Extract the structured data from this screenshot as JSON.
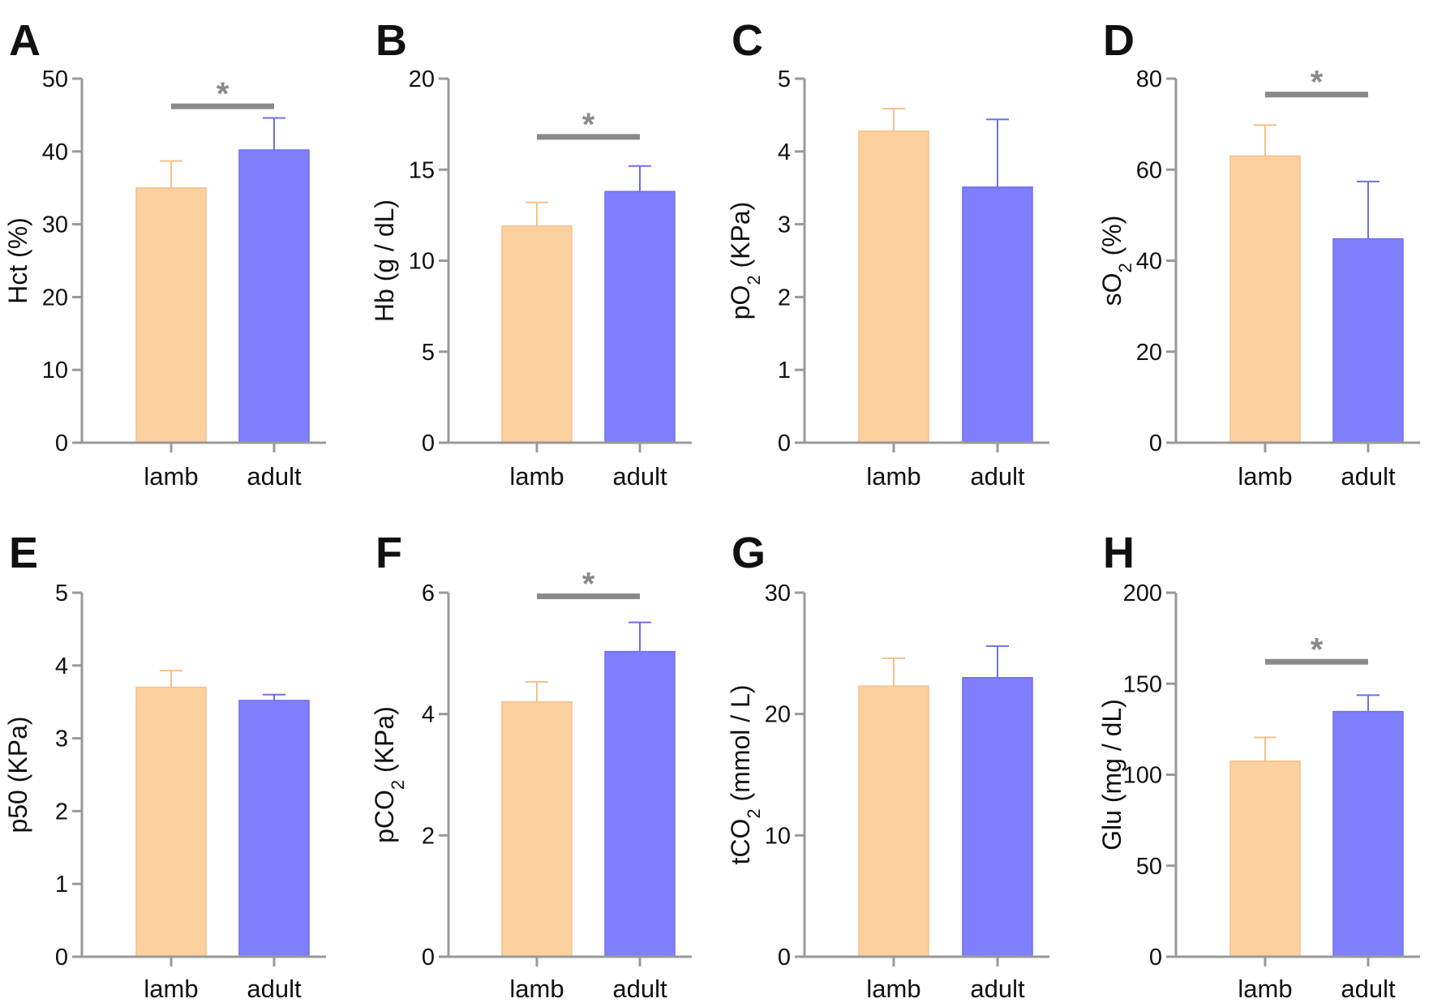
{
  "colors": {
    "lamb": "#FDD09F",
    "adult": "#7F7FFD",
    "lamb_edge": "#F4C08A",
    "adult_edge": "#6E6EEE",
    "axis": "#999999",
    "sig": "#8a8a8a"
  },
  "chart_data": [
    {
      "type": "bar",
      "panel": "A",
      "ylabel": "Hct (%)",
      "ylabel_main": "Hct",
      "ylabel_sub": "",
      "ylabel_rest": " (%)",
      "categories": [
        "lamb",
        "adult"
      ],
      "values": [
        35,
        40.2
      ],
      "errors": [
        3.7,
        4.4
      ],
      "ylim": [
        0,
        50
      ],
      "yticks": [
        0,
        10,
        20,
        30,
        40,
        50
      ],
      "ytick_labels": [
        "0",
        "10",
        "20",
        "30",
        "40",
        "50"
      ],
      "significance": {
        "marker": "*",
        "level": 46.2
      }
    },
    {
      "type": "bar",
      "panel": "B",
      "ylabel": "Hb (g / dL)",
      "ylabel_main": "Hb (g / dL)",
      "ylabel_sub": "",
      "ylabel_rest": "",
      "categories": [
        "lamb",
        "adult"
      ],
      "values": [
        11.9,
        13.8
      ],
      "errors": [
        1.3,
        1.4
      ],
      "ylim": [
        0,
        20
      ],
      "yticks": [
        0,
        5,
        10,
        15,
        20
      ],
      "ytick_labels": [
        "0",
        "5",
        "10",
        "15",
        "20"
      ],
      "significance": {
        "marker": "*",
        "level": 16.8
      }
    },
    {
      "type": "bar",
      "panel": "C",
      "ylabel": "pO2 (KPa)",
      "ylabel_main": "pO",
      "ylabel_sub": "2",
      "ylabel_rest": " (KPa)",
      "categories": [
        "lamb",
        "adult"
      ],
      "values": [
        4.28,
        3.51
      ],
      "errors": [
        0.31,
        0.93
      ],
      "ylim": [
        0,
        5
      ],
      "yticks": [
        0,
        1,
        2,
        3,
        4,
        5
      ],
      "ytick_labels": [
        "0",
        "1",
        "2",
        "3",
        "4",
        "5"
      ],
      "significance": null
    },
    {
      "type": "bar",
      "panel": "D",
      "ylabel": "sO2 (%)",
      "ylabel_main": "sO",
      "ylabel_sub": "2",
      "ylabel_rest": " (%)",
      "categories": [
        "lamb",
        "adult"
      ],
      "values": [
        63,
        44.8
      ],
      "errors": [
        6.8,
        12.6
      ],
      "ylim": [
        0,
        80
      ],
      "yticks": [
        0,
        20,
        40,
        60,
        80
      ],
      "ytick_labels": [
        "0",
        "20",
        "40",
        "60",
        "80"
      ],
      "significance": {
        "marker": "*",
        "level": 76.5
      }
    },
    {
      "type": "bar",
      "panel": "E",
      "ylabel": "p50 (KPa)",
      "ylabel_main": "p50 (KPa)",
      "ylabel_sub": "",
      "ylabel_rest": "",
      "categories": [
        "lamb",
        "adult"
      ],
      "values": [
        3.7,
        3.52
      ],
      "errors": [
        0.23,
        0.08
      ],
      "ylim": [
        0,
        5
      ],
      "yticks": [
        0,
        1,
        2,
        3,
        4,
        5
      ],
      "ytick_labels": [
        "0",
        "1",
        "2",
        "3",
        "4",
        "5"
      ],
      "significance": null
    },
    {
      "type": "bar",
      "panel": "F",
      "ylabel": "pCO2 (KPa)",
      "ylabel_main": "pCO",
      "ylabel_sub": "2",
      "ylabel_rest": " (KPa)",
      "categories": [
        "lamb",
        "adult"
      ],
      "values": [
        4.2,
        5.03
      ],
      "errors": [
        0.33,
        0.48
      ],
      "ylim": [
        0,
        6
      ],
      "yticks": [
        0,
        2,
        4,
        6
      ],
      "ytick_labels": [
        "0",
        "2",
        "4",
        "6"
      ],
      "significance": {
        "marker": "*",
        "level": 5.94
      }
    },
    {
      "type": "bar",
      "panel": "G",
      "ylabel": "tCO2 (mmol / L)",
      "ylabel_main": "tCO",
      "ylabel_sub": "2",
      "ylabel_rest": " (mmol / L)",
      "categories": [
        "lamb",
        "adult"
      ],
      "values": [
        22.3,
        23
      ],
      "errors": [
        2.3,
        2.6
      ],
      "ylim": [
        0,
        30
      ],
      "yticks": [
        0,
        10,
        20,
        30
      ],
      "ytick_labels": [
        "0",
        "10",
        "20",
        "30"
      ],
      "significance": null
    },
    {
      "type": "bar",
      "panel": "H",
      "ylabel": "Glu (mg / dL)",
      "ylabel_main": "Glu (mg / dL)",
      "ylabel_sub": "",
      "ylabel_rest": "",
      "categories": [
        "lamb",
        "adult"
      ],
      "values": [
        107.5,
        134.7
      ],
      "errors": [
        13,
        9
      ],
      "ylim": [
        0,
        200
      ],
      "yticks": [
        0,
        50,
        100,
        150,
        200
      ],
      "ytick_labels": [
        "0",
        "50",
        "100",
        "150",
        "200"
      ],
      "significance": {
        "marker": "*",
        "level": 162
      }
    }
  ]
}
